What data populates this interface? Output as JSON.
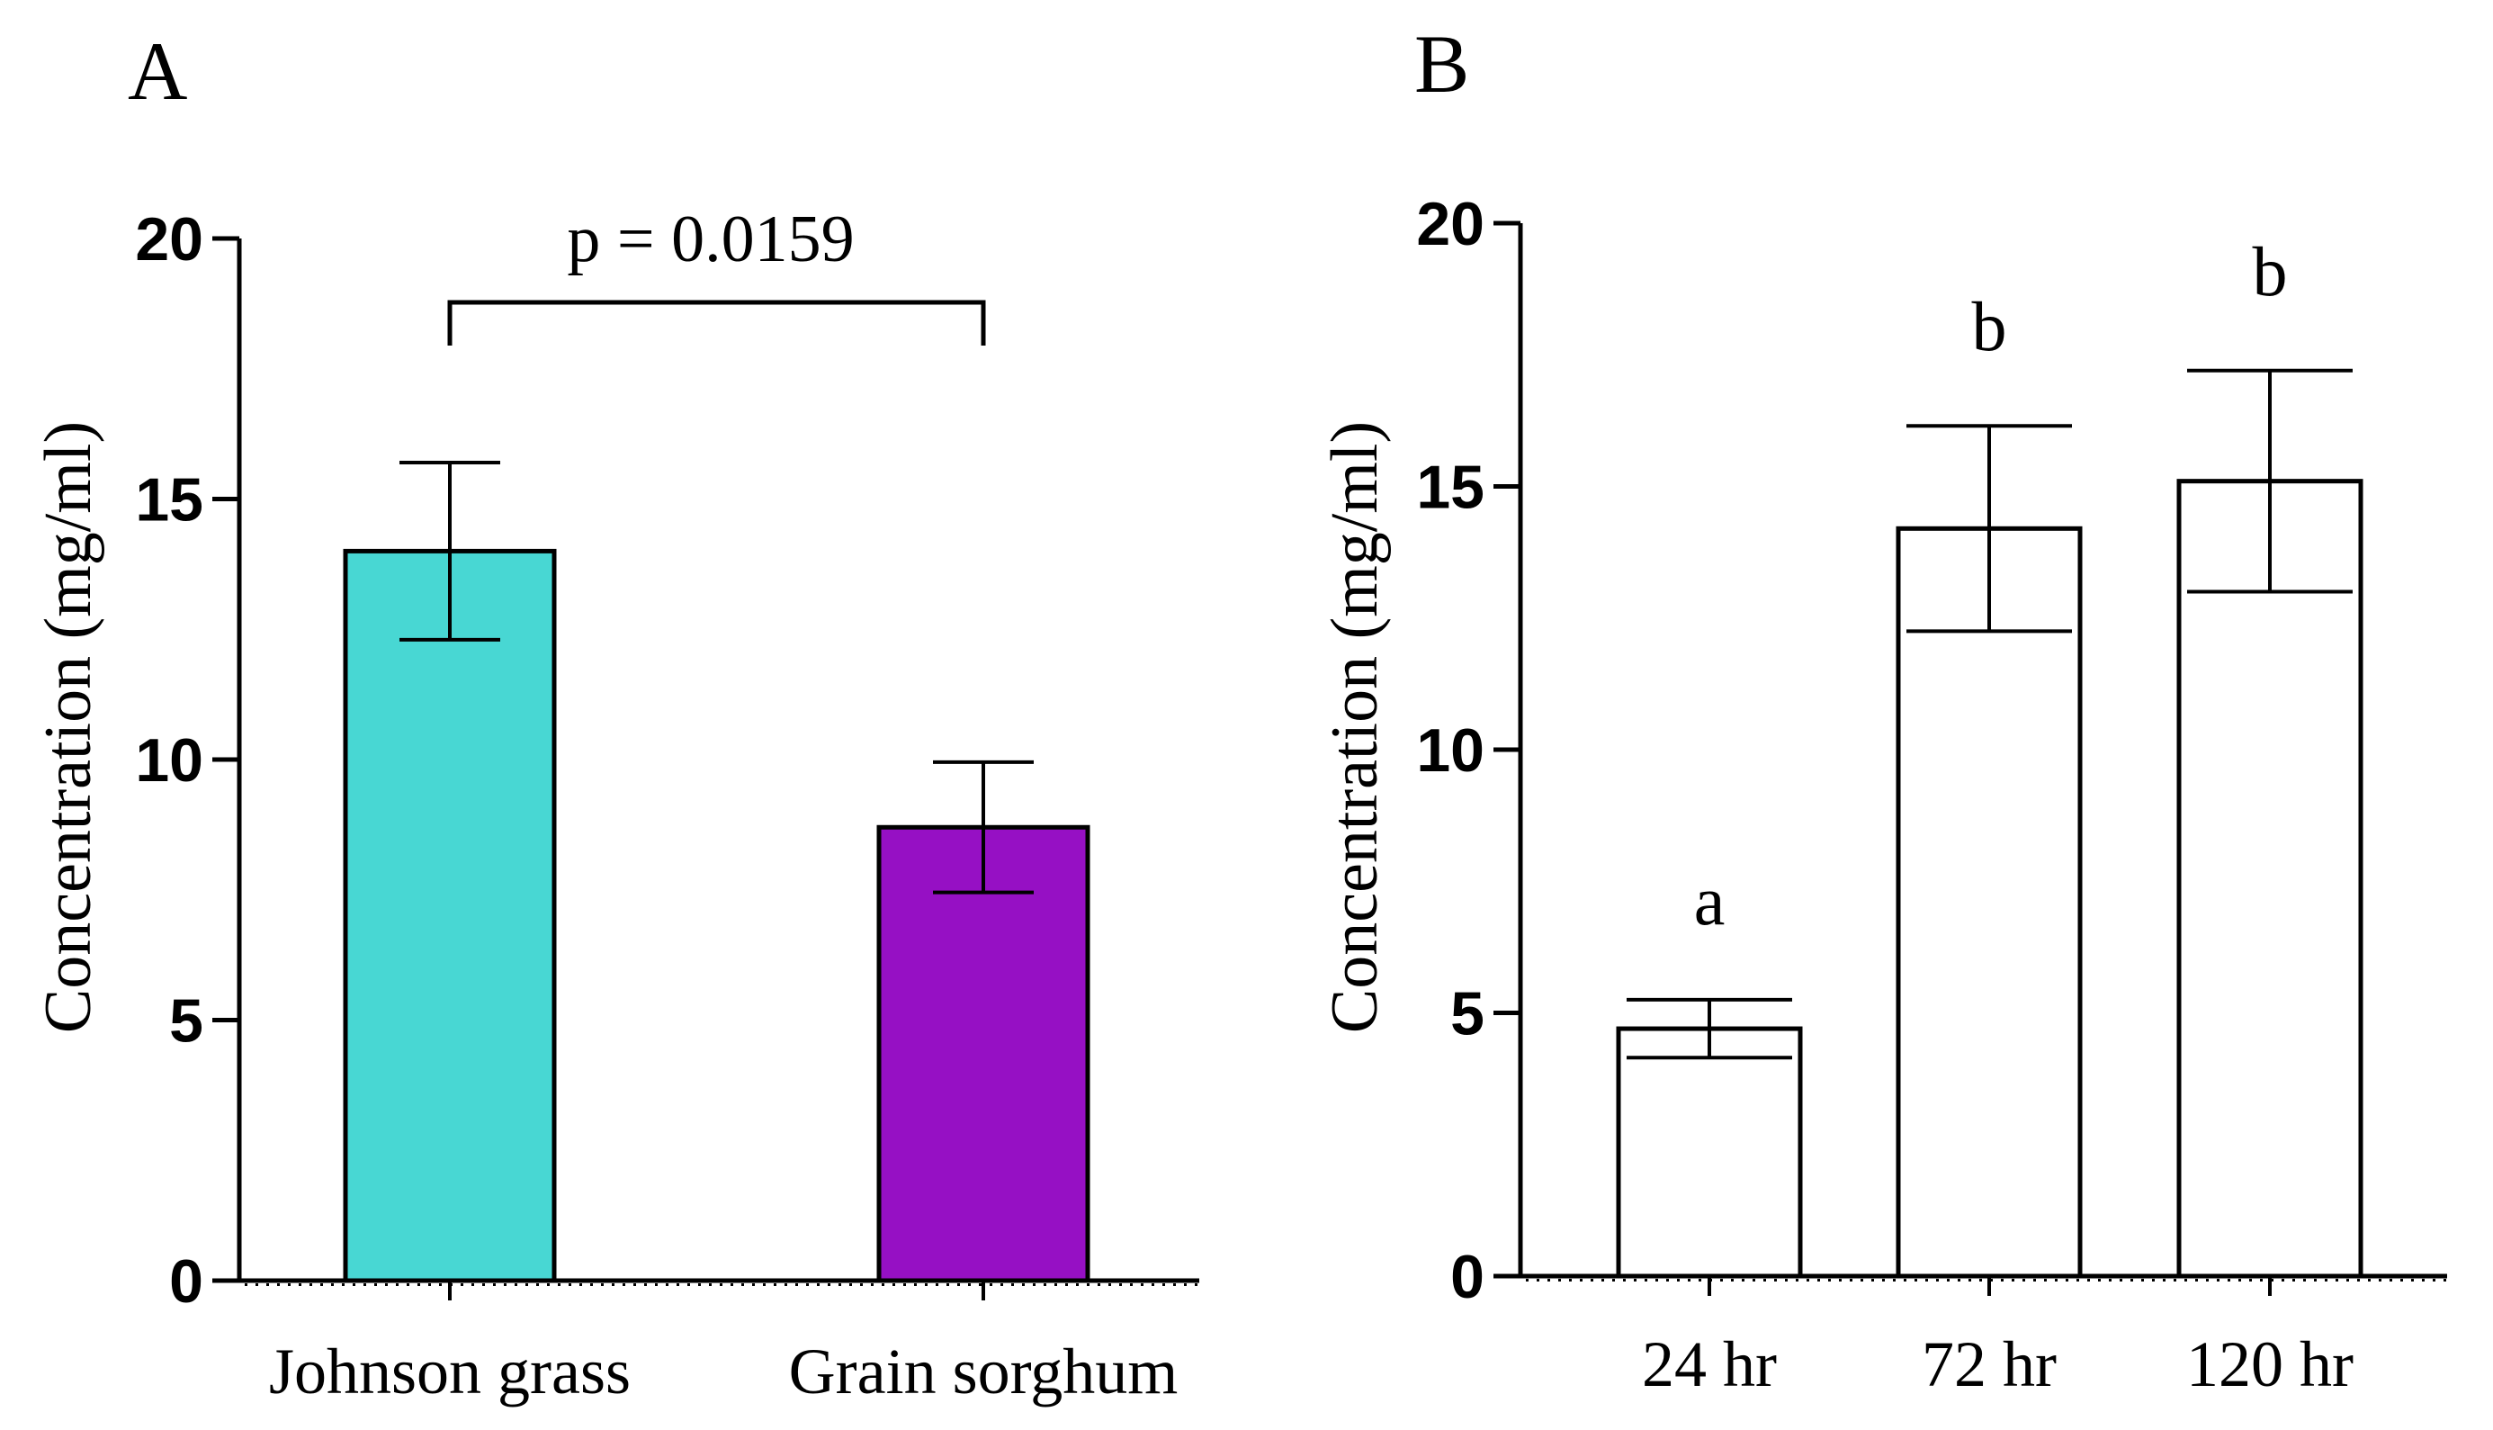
{
  "chart_data": [
    {
      "type": "bar",
      "panel_label": "A",
      "categories": [
        "Johnson grass",
        "Grain sorghum"
      ],
      "values": [
        14.0,
        8.7
      ],
      "errors": [
        1.7,
        1.25
      ],
      "bar_colors": [
        "#48d7d3",
        "#9610c4"
      ],
      "ylabel": "Concentration (mg/ml)",
      "ylim": [
        0,
        20
      ],
      "yticks": [
        "0",
        "5",
        "10",
        "15",
        "20"
      ],
      "yticks_values": [
        0,
        5,
        10,
        15,
        20
      ],
      "significance": "p = 0.0159"
    },
    {
      "type": "bar",
      "panel_label": "B",
      "categories": [
        "24 hr",
        "72 hr",
        "120 hr"
      ],
      "values": [
        4.7,
        14.2,
        15.1
      ],
      "errors": [
        0.55,
        1.95,
        2.1
      ],
      "bar_colors": [
        "#ffffff",
        "#ffffff",
        "#ffffff"
      ],
      "group_letters": [
        "a",
        "b",
        "b"
      ],
      "ylabel": "Concentration (mg/ml)",
      "ylim": [
        0,
        20
      ],
      "yticks": [
        "0",
        "5",
        "10",
        "15",
        "20"
      ],
      "yticks_values": [
        0,
        5,
        10,
        15,
        20
      ]
    }
  ]
}
